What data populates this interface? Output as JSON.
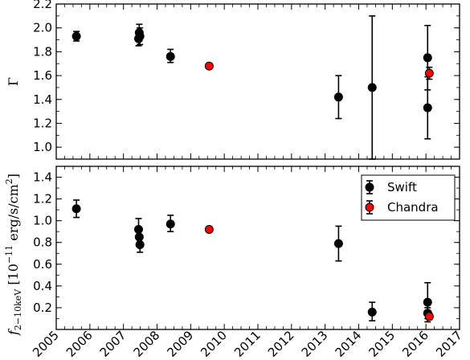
{
  "chart_data": [
    {
      "type": "scatter",
      "panel": "top",
      "ylabel": "Γ",
      "xlim": [
        2005,
        2017
      ],
      "ylim": [
        0.9,
        2.2
      ],
      "yticks": [
        1.0,
        1.2,
        1.4,
        1.6,
        1.8,
        2.0,
        2.2
      ],
      "yticklabels": [
        "1.0",
        "1.2",
        "1.4",
        "1.6",
        "1.8",
        "2.0",
        "2.2"
      ],
      "show_xticklabels": false,
      "series": [
        {
          "name": "Swift",
          "color": "#000000",
          "points": [
            {
              "x": 2005.6,
              "y": 1.93,
              "lo": 1.89,
              "hi": 1.97
            },
            {
              "x": 2007.45,
              "y": 1.91,
              "lo": 1.85,
              "hi": 1.97
            },
            {
              "x": 2007.47,
              "y": 1.96,
              "lo": 1.89,
              "hi": 2.03
            },
            {
              "x": 2007.49,
              "y": 1.93,
              "lo": 1.86,
              "hi": 2.0
            },
            {
              "x": 2008.4,
              "y": 1.76,
              "lo": 1.71,
              "hi": 1.82
            },
            {
              "x": 2013.4,
              "y": 1.42,
              "lo": 1.24,
              "hi": 1.6
            },
            {
              "x": 2014.4,
              "y": 1.5,
              "lo": 0.9,
              "hi": 2.1
            },
            {
              "x": 2016.05,
              "y": 1.75,
              "lo": 1.48,
              "hi": 2.02
            },
            {
              "x": 2016.05,
              "y": 1.33,
              "lo": 1.07,
              "hi": 1.59
            }
          ]
        },
        {
          "name": "Chandra",
          "color": "#ff0000",
          "points": [
            {
              "x": 2009.55,
              "y": 1.68,
              "lo": 1.66,
              "hi": 1.7
            },
            {
              "x": 2016.1,
              "y": 1.62,
              "lo": 1.57,
              "hi": 1.67
            }
          ]
        }
      ]
    },
    {
      "type": "scatter",
      "panel": "bottom",
      "ylabel_parts": {
        "f": "f",
        "sub": "2−10keV",
        "bracket_open": " [10",
        "exp": "−11",
        "unit": " erg/s/cm",
        "unit_exp": "2",
        "bracket_close": "]"
      },
      "xlim": [
        2005,
        2017
      ],
      "ylim": [
        0.0,
        1.5
      ],
      "xticks": [
        2005,
        2006,
        2007,
        2008,
        2009,
        2010,
        2011,
        2012,
        2013,
        2014,
        2015,
        2016,
        2017
      ],
      "xticklabels": [
        "2005",
        "2006",
        "2007",
        "2008",
        "2009",
        "2010",
        "2011",
        "2012",
        "2013",
        "2014",
        "2015",
        "2016",
        "2017"
      ],
      "yticks": [
        0.2,
        0.4,
        0.6,
        0.8,
        1.0,
        1.2,
        1.4
      ],
      "yticklabels": [
        "0.2",
        "0.4",
        "0.6",
        "0.8",
        "1.0",
        "1.2",
        "1.4"
      ],
      "legend": {
        "position": "upper-right",
        "entries": [
          "Swift",
          "Chandra"
        ]
      },
      "series": [
        {
          "name": "Swift",
          "color": "#000000",
          "points": [
            {
              "x": 2005.6,
              "y": 1.11,
              "lo": 1.03,
              "hi": 1.19
            },
            {
              "x": 2007.45,
              "y": 0.92,
              "lo": 0.86,
              "hi": 1.02
            },
            {
              "x": 2007.47,
              "y": 0.85,
              "lo": 0.78,
              "hi": 0.93
            },
            {
              "x": 2007.49,
              "y": 0.78,
              "lo": 0.71,
              "hi": 0.84
            },
            {
              "x": 2008.4,
              "y": 0.97,
              "lo": 0.9,
              "hi": 1.05
            },
            {
              "x": 2013.4,
              "y": 0.79,
              "lo": 0.63,
              "hi": 0.95
            },
            {
              "x": 2014.4,
              "y": 0.16,
              "lo": 0.08,
              "hi": 0.25
            },
            {
              "x": 2016.05,
              "y": 0.25,
              "lo": 0.07,
              "hi": 0.43
            },
            {
              "x": 2016.05,
              "y": 0.15,
              "lo": 0.1,
              "hi": 0.2
            }
          ]
        },
        {
          "name": "Chandra",
          "color": "#ff0000",
          "points": [
            {
              "x": 2009.55,
              "y": 0.92,
              "lo": 0.9,
              "hi": 0.94
            },
            {
              "x": 2016.1,
              "y": 0.12,
              "lo": 0.09,
              "hi": 0.15
            }
          ]
        }
      ]
    }
  ]
}
